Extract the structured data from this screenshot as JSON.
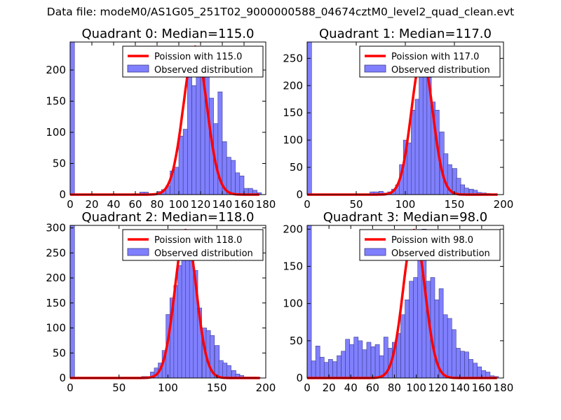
{
  "suptitle": "Data file: modeM0/AS1G05_251T02_9000000588_04674cztM0_level2_quad_clean.evt",
  "colors": {
    "bar_fill": "#8080ff",
    "bar_edge": "#3a3a8a",
    "poisson": "#ff0000",
    "frame": "#000000"
  },
  "chart_data": [
    {
      "type": "bar",
      "title": "Quadrant 0: Median=115.0",
      "xlim": [
        0,
        180
      ],
      "ylim": [
        0,
        245
      ],
      "xticks": [
        0,
        20,
        40,
        60,
        80,
        100,
        120,
        140,
        160,
        180
      ],
      "yticks": [
        0,
        50,
        100,
        150,
        200
      ],
      "bin_width": 4,
      "bins": [
        [
          0,
          245
        ],
        [
          64,
          4
        ],
        [
          68,
          4
        ],
        [
          72,
          1
        ],
        [
          76,
          2
        ],
        [
          80,
          5
        ],
        [
          84,
          8
        ],
        [
          88,
          14
        ],
        [
          92,
          38
        ],
        [
          96,
          44
        ],
        [
          100,
          94
        ],
        [
          104,
          105
        ],
        [
          108,
          195
        ],
        [
          112,
          175
        ],
        [
          116,
          230
        ],
        [
          120,
          214
        ],
        [
          124,
          208
        ],
        [
          128,
          155
        ],
        [
          132,
          114
        ],
        [
          136,
          165
        ],
        [
          140,
          85
        ],
        [
          144,
          60
        ],
        [
          148,
          55
        ],
        [
          152,
          35
        ],
        [
          156,
          30
        ],
        [
          160,
          10
        ],
        [
          164,
          10
        ],
        [
          168,
          7
        ],
        [
          172,
          3
        ]
      ],
      "poisson_mu": 115,
      "legend": [
        "Poission with 115.0",
        "Observed distribution"
      ]
    },
    {
      "type": "bar",
      "title": "Quadrant 1: Median=117.0",
      "xlim": [
        0,
        200
      ],
      "ylim": [
        0,
        280
      ],
      "xticks": [
        0,
        50,
        100,
        150,
        200
      ],
      "yticks": [
        0,
        50,
        100,
        150,
        200,
        250
      ],
      "bin_width": 4.5,
      "bins": [
        [
          0,
          280
        ],
        [
          64,
          5
        ],
        [
          68,
          5
        ],
        [
          73,
          6
        ],
        [
          78,
          3
        ],
        [
          82,
          5
        ],
        [
          86,
          10
        ],
        [
          90,
          18
        ],
        [
          94,
          55
        ],
        [
          98,
          100
        ],
        [
          102,
          95
        ],
        [
          106,
          155
        ],
        [
          110,
          175
        ],
        [
          114,
          235
        ],
        [
          118,
          220
        ],
        [
          122,
          215
        ],
        [
          126,
          170
        ],
        [
          130,
          155
        ],
        [
          135,
          115
        ],
        [
          139,
          75
        ],
        [
          143,
          55
        ],
        [
          148,
          48
        ],
        [
          152,
          30
        ],
        [
          156,
          18
        ],
        [
          160,
          12
        ],
        [
          165,
          10
        ],
        [
          169,
          8
        ],
        [
          173,
          4
        ],
        [
          178,
          3
        ],
        [
          182,
          2
        ],
        [
          186,
          1
        ]
      ],
      "poisson_mu": 117,
      "legend": [
        "Poission with 117.0",
        "Observed distribution"
      ]
    },
    {
      "type": "bar",
      "title": "Quadrant 2: Median=118.0",
      "xlim": [
        0,
        200
      ],
      "ylim": [
        0,
        305
      ],
      "xticks": [
        0,
        50,
        100,
        150,
        200
      ],
      "yticks": [
        0,
        50,
        100,
        150,
        200,
        250,
        300
      ],
      "bin_width": 4.5,
      "bins": [
        [
          0,
          305
        ],
        [
          68,
          1
        ],
        [
          73,
          3
        ],
        [
          78,
          3
        ],
        [
          82,
          12
        ],
        [
          86,
          20
        ],
        [
          90,
          30
        ],
        [
          94,
          55
        ],
        [
          98,
          127
        ],
        [
          102,
          160
        ],
        [
          106,
          185
        ],
        [
          110,
          225
        ],
        [
          114,
          255
        ],
        [
          118,
          285
        ],
        [
          122,
          265
        ],
        [
          126,
          215
        ],
        [
          130,
          140
        ],
        [
          135,
          100
        ],
        [
          139,
          95
        ],
        [
          143,
          85
        ],
        [
          148,
          65
        ],
        [
          152,
          35
        ],
        [
          156,
          30
        ],
        [
          160,
          25
        ],
        [
          165,
          15
        ],
        [
          169,
          8
        ],
        [
          173,
          5
        ],
        [
          178,
          2
        ],
        [
          182,
          2
        ],
        [
          186,
          2
        ],
        [
          190,
          1
        ]
      ],
      "poisson_mu": 118,
      "legend": [
        "Poission with 118.0",
        "Observed distribution"
      ]
    },
    {
      "type": "bar",
      "title": "Quadrant 3: Median=98.0",
      "xlim": [
        0,
        180
      ],
      "ylim": [
        0,
        205
      ],
      "xticks": [
        0,
        20,
        40,
        60,
        80,
        100,
        120,
        140,
        160,
        180
      ],
      "yticks": [
        0,
        50,
        100,
        150,
        200
      ],
      "bin_width": 3.9,
      "bins": [
        [
          0,
          205
        ],
        [
          3.9,
          23
        ],
        [
          7.8,
          43
        ],
        [
          11.7,
          28
        ],
        [
          15.6,
          21
        ],
        [
          19.5,
          25
        ],
        [
          23.4,
          22
        ],
        [
          27.3,
          30
        ],
        [
          31.2,
          36
        ],
        [
          35.1,
          52
        ],
        [
          39,
          45
        ],
        [
          42.9,
          55
        ],
        [
          46.8,
          50
        ],
        [
          50.7,
          38
        ],
        [
          54.6,
          48
        ],
        [
          58.5,
          42
        ],
        [
          62.4,
          45
        ],
        [
          66.3,
          30
        ],
        [
          70.2,
          55
        ],
        [
          74.1,
          40
        ],
        [
          78,
          48
        ],
        [
          81.9,
          60
        ],
        [
          85.8,
          85
        ],
        [
          89.7,
          105
        ],
        [
          93.6,
          130
        ],
        [
          97.5,
          135
        ],
        [
          101.4,
          175
        ],
        [
          105.3,
          200
        ],
        [
          109.2,
          130
        ],
        [
          113.1,
          135
        ],
        [
          117,
          105
        ],
        [
          120.9,
          120
        ],
        [
          124.8,
          85
        ],
        [
          128.7,
          80
        ],
        [
          132.6,
          65
        ],
        [
          136.5,
          40
        ],
        [
          140.4,
          36
        ],
        [
          144.3,
          35
        ],
        [
          148.2,
          25
        ],
        [
          152.1,
          20
        ],
        [
          156,
          15
        ],
        [
          159.9,
          10
        ],
        [
          163.8,
          8
        ],
        [
          167.7,
          3
        ],
        [
          171.6,
          2
        ]
      ],
      "poisson_mu": 98,
      "legend": [
        "Poission with 98.0",
        "Observed distribution"
      ]
    }
  ]
}
